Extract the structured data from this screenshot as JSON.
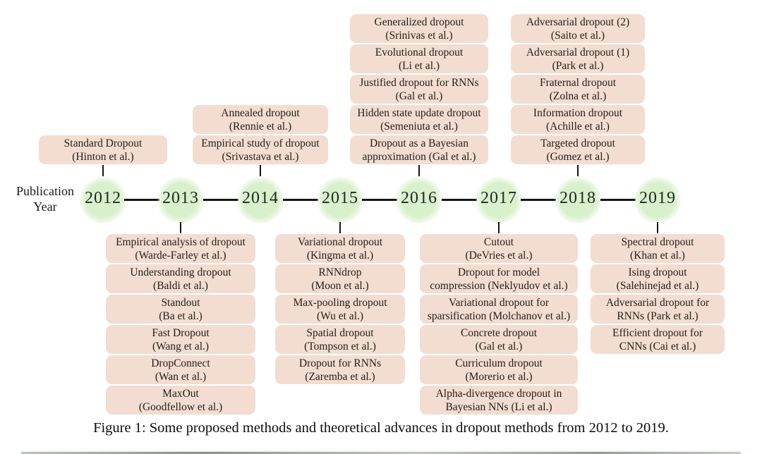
{
  "figure": {
    "axis_label_line1": "Publication",
    "axis_label_line2": "Year",
    "caption": "Figure 1: Some proposed methods and theoretical advances in dropout methods from 2012 to 2019.",
    "colors": {
      "box_fill": "#f2ddd0",
      "circle_fill": "#d9f0cd",
      "line": "#151515"
    },
    "timeline": {
      "years": [
        {
          "year": "2012",
          "side": "above",
          "methods": [
            {
              "line1": "Standard Dropout",
              "line2": "(Hinton et al.)"
            }
          ]
        },
        {
          "year": "2013",
          "side": "below",
          "methods": [
            {
              "line1": "Empirical analysis of dropout",
              "line2": "(Warde-Farley et al.)"
            },
            {
              "line1": "Understanding dropout",
              "line2": "(Baldi et al.)"
            },
            {
              "line1": "Standout",
              "line2": "(Ba et al.)"
            },
            {
              "line1": "Fast Dropout",
              "line2": "(Wang et al.)"
            },
            {
              "line1": "DropConnect",
              "line2": "(Wan et al.)"
            },
            {
              "line1": "MaxOut",
              "line2": "(Goodfellow et al.)"
            }
          ]
        },
        {
          "year": "2014",
          "side": "above",
          "methods": [
            {
              "line1": "Annealed dropout",
              "line2": "(Rennie et al.)"
            },
            {
              "line1": "Empirical study of dropout",
              "line2": "(Srivastava et al.)"
            }
          ]
        },
        {
          "year": "2015",
          "side": "below",
          "methods": [
            {
              "line1": "Variational dropout",
              "line2": "(Kingma et al.)"
            },
            {
              "line1": "RNNdrop",
              "line2": "(Moon et al.)"
            },
            {
              "line1": "Max-pooling dropout",
              "line2": "(Wu et al.)"
            },
            {
              "line1": "Spatial dropout",
              "line2": "(Tompson et al.)"
            },
            {
              "line1": "Dropout for RNNs",
              "line2": "(Zaremba et al.)"
            }
          ]
        },
        {
          "year": "2016",
          "side": "above",
          "methods": [
            {
              "line1": "Generalized dropout",
              "line2": "(Srinivas et al.)"
            },
            {
              "line1": "Evolutional dropout",
              "line2": "(Li et al.)"
            },
            {
              "line1": "Justified dropout for RNNs",
              "line2": "(Gal et al.)"
            },
            {
              "line1": "Hidden state update dropout",
              "line2": "(Semeniuta et al.)"
            },
            {
              "line1": "Dropout as a Bayesian",
              "line2": "approximation (Gal et al.)"
            }
          ]
        },
        {
          "year": "2017",
          "side": "below",
          "methods": [
            {
              "line1": "Cutout",
              "line2": "(DeVries et al.)"
            },
            {
              "line1": "Dropout for  model",
              "line2": "compression (Neklyudov et al.)"
            },
            {
              "line1": "Variational dropout for",
              "line2": "sparsification (Molchanov et al.)"
            },
            {
              "line1": "Concrete dropout",
              "line2": "(Gal et al.)"
            },
            {
              "line1": "Curriculum dropout",
              "line2": "(Morerio et al.)"
            },
            {
              "line1": "Alpha-divergence dropout in",
              "line2": "Bayesian NNs (Li et al.)"
            }
          ]
        },
        {
          "year": "2018",
          "side": "above",
          "methods": [
            {
              "line1": "Adversarial dropout (2)",
              "line2": "(Saito et al.)"
            },
            {
              "line1": "Adversarial dropout (1)",
              "line2": "(Park et al.)"
            },
            {
              "line1": "Fraternal dropout",
              "line2": "(Zolna et al.)"
            },
            {
              "line1": "Information dropout",
              "line2": "(Achille et al.)"
            },
            {
              "line1": "Targeted dropout",
              "line2": "(Gomez et al.)"
            }
          ]
        },
        {
          "year": "2019",
          "side": "below",
          "methods": [
            {
              "line1": "Spectral dropout",
              "line2": "(Khan et al.)"
            },
            {
              "line1": "Ising dropout",
              "line2": "(Salehinejad et al.)"
            },
            {
              "line1": "Adversarial dropout for",
              "line2": "RNNs (Park et al.)"
            },
            {
              "line1": "Efficient dropout for",
              "line2": "CNNs (Cai et al.)"
            }
          ]
        }
      ]
    }
  }
}
